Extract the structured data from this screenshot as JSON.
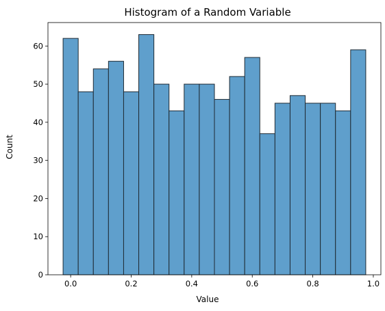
{
  "chart_data": {
    "type": "bar",
    "title": "Histogram of a Random Variable",
    "xlabel": "Value",
    "ylabel": "Count",
    "bin_edges": [
      -0.025,
      0.025,
      0.075,
      0.125,
      0.175,
      0.225,
      0.275,
      0.325,
      0.375,
      0.425,
      0.475,
      0.525,
      0.575,
      0.625,
      0.675,
      0.725,
      0.775,
      0.825,
      0.875,
      0.925,
      0.975
    ],
    "values": [
      62,
      48,
      54,
      56,
      48,
      63,
      50,
      43,
      50,
      50,
      46,
      52,
      57,
      37,
      45,
      47,
      45,
      45,
      43,
      59
    ],
    "xlim": [
      -0.075,
      1.025
    ],
    "ylim": [
      0,
      66.15
    ],
    "xticks": [
      0.0,
      0.2,
      0.4,
      0.6,
      0.8,
      1.0
    ],
    "xtick_labels": [
      "0.0",
      "0.2",
      "0.4",
      "0.6",
      "0.8",
      "1.0"
    ],
    "yticks": [
      0,
      10,
      20,
      30,
      40,
      50,
      60
    ],
    "ytick_labels": [
      "0",
      "10",
      "20",
      "30",
      "40",
      "50",
      "60"
    ],
    "bar_color": "#5f9fcc",
    "bar_edge_color": "#1f2a33",
    "grid": false,
    "legend": "none"
  }
}
